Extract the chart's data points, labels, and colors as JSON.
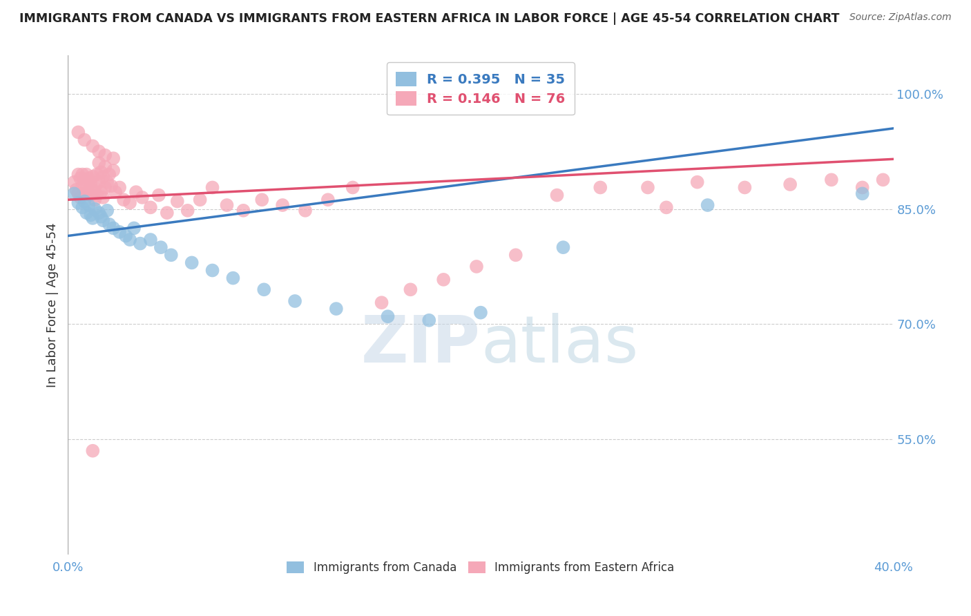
{
  "title": "IMMIGRANTS FROM CANADA VS IMMIGRANTS FROM EASTERN AFRICA IN LABOR FORCE | AGE 45-54 CORRELATION CHART",
  "source": "Source: ZipAtlas.com",
  "ylabel": "In Labor Force | Age 45-54",
  "xlim": [
    0.0,
    0.4
  ],
  "ylim": [
    0.4,
    1.05
  ],
  "canada_color": "#92bfdf",
  "canada_color_line": "#3a7abf",
  "eastern_africa_color": "#f5a8b8",
  "eastern_africa_color_line": "#e05070",
  "canada_R": 0.395,
  "canada_N": 35,
  "eastern_africa_R": 0.146,
  "eastern_africa_N": 76,
  "background_color": "#ffffff",
  "grid_color": "#cccccc",
  "axis_color": "#5b9bd5",
  "canada_x": [
    0.003,
    0.005,
    0.007,
    0.008,
    0.009,
    0.01,
    0.011,
    0.012,
    0.013,
    0.015,
    0.016,
    0.017,
    0.019,
    0.02,
    0.022,
    0.025,
    0.028,
    0.03,
    0.032,
    0.035,
    0.04,
    0.045,
    0.05,
    0.06,
    0.07,
    0.08,
    0.095,
    0.11,
    0.13,
    0.155,
    0.175,
    0.2,
    0.24,
    0.31,
    0.385
  ],
  "canada_y": [
    0.87,
    0.858,
    0.852,
    0.86,
    0.845,
    0.855,
    0.842,
    0.838,
    0.85,
    0.845,
    0.84,
    0.835,
    0.848,
    0.83,
    0.825,
    0.82,
    0.815,
    0.81,
    0.825,
    0.805,
    0.81,
    0.8,
    0.79,
    0.78,
    0.77,
    0.76,
    0.745,
    0.73,
    0.72,
    0.71,
    0.705,
    0.715,
    0.8,
    0.855,
    0.87
  ],
  "eastern_africa_x": [
    0.003,
    0.004,
    0.005,
    0.005,
    0.006,
    0.006,
    0.007,
    0.007,
    0.008,
    0.008,
    0.009,
    0.009,
    0.01,
    0.01,
    0.011,
    0.011,
    0.012,
    0.012,
    0.013,
    0.013,
    0.014,
    0.014,
    0.015,
    0.015,
    0.016,
    0.016,
    0.017,
    0.017,
    0.018,
    0.018,
    0.019,
    0.02,
    0.021,
    0.022,
    0.023,
    0.025,
    0.027,
    0.03,
    0.033,
    0.036,
    0.04,
    0.044,
    0.048,
    0.053,
    0.058,
    0.064,
    0.07,
    0.077,
    0.085,
    0.094,
    0.104,
    0.115,
    0.126,
    0.138,
    0.152,
    0.166,
    0.182,
    0.198,
    0.217,
    0.237,
    0.258,
    0.281,
    0.305,
    0.328,
    0.35,
    0.37,
    0.385,
    0.395,
    0.005,
    0.008,
    0.012,
    0.015,
    0.018,
    0.022,
    0.012,
    0.29
  ],
  "eastern_africa_y": [
    0.885,
    0.875,
    0.895,
    0.87,
    0.89,
    0.865,
    0.88,
    0.895,
    0.87,
    0.888,
    0.882,
    0.895,
    0.875,
    0.89,
    0.868,
    0.885,
    0.875,
    0.892,
    0.862,
    0.878,
    0.895,
    0.868,
    0.885,
    0.91,
    0.898,
    0.872,
    0.892,
    0.865,
    0.905,
    0.878,
    0.885,
    0.895,
    0.88,
    0.9,
    0.872,
    0.878,
    0.862,
    0.858,
    0.872,
    0.865,
    0.852,
    0.868,
    0.845,
    0.86,
    0.848,
    0.862,
    0.878,
    0.855,
    0.848,
    0.862,
    0.855,
    0.848,
    0.862,
    0.878,
    0.728,
    0.745,
    0.758,
    0.775,
    0.79,
    0.868,
    0.878,
    0.878,
    0.885,
    0.878,
    0.882,
    0.888,
    0.878,
    0.888,
    0.95,
    0.94,
    0.932,
    0.925,
    0.92,
    0.916,
    0.535,
    0.852
  ],
  "canada_line_x": [
    0.0,
    0.4
  ],
  "canada_line_y": [
    0.815,
    0.955
  ],
  "ea_line_x": [
    0.0,
    0.4
  ],
  "ea_line_y": [
    0.862,
    0.915
  ]
}
